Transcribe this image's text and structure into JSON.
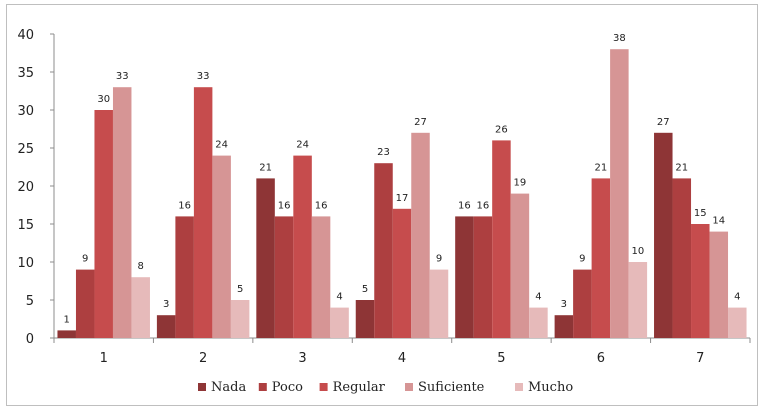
{
  "chart_data": {
    "type": "bar",
    "categories": [
      "1",
      "2",
      "3",
      "4",
      "5",
      "6",
      "7"
    ],
    "series": [
      {
        "name": "Nada",
        "color": "#8e3536",
        "values": [
          1,
          3,
          21,
          5,
          16,
          3,
          27
        ]
      },
      {
        "name": "Poco",
        "color": "#ad3f40",
        "values": [
          9,
          16,
          16,
          23,
          16,
          9,
          21
        ]
      },
      {
        "name": "Regular",
        "color": "#c64c4d",
        "values": [
          30,
          33,
          24,
          17,
          26,
          21,
          15
        ]
      },
      {
        "name": "Suficiente",
        "color": "#d69595",
        "values": [
          33,
          24,
          16,
          27,
          19,
          38,
          14
        ]
      },
      {
        "name": "Mucho",
        "color": "#e6baba",
        "values": [
          8,
          5,
          4,
          9,
          4,
          10,
          4
        ]
      }
    ],
    "ylim": [
      0,
      40
    ],
    "yticks": [
      0,
      5,
      10,
      15,
      20,
      25,
      30,
      35,
      40
    ],
    "grid": false,
    "legend": "bottom"
  }
}
